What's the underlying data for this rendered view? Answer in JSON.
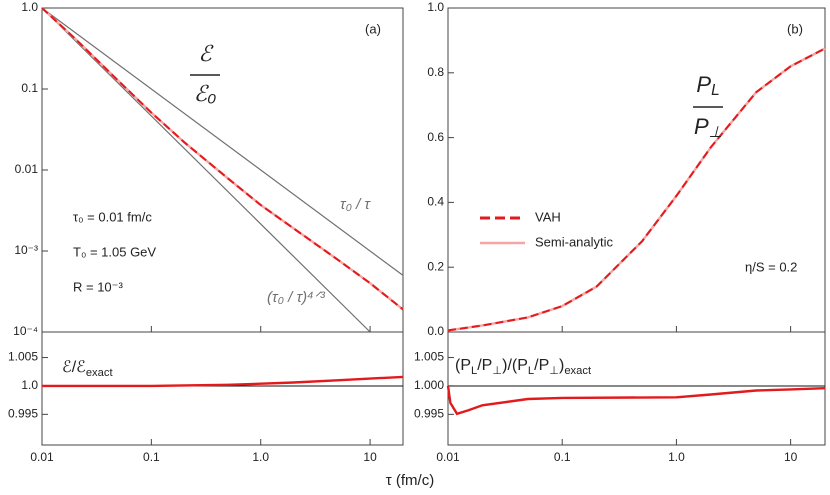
{
  "x_label": "τ (fm/c)",
  "chart_data": [
    {
      "type": "line",
      "panel_label": "(a)",
      "xscale": "log",
      "yscale": "log",
      "xlim": [
        0.01,
        20
      ],
      "xticks": [
        0.01,
        0.1,
        1,
        10
      ],
      "ylim": [
        0.0001,
        1
      ],
      "yticks": [
        {
          "value": 1,
          "label": "1.0"
        },
        0.1,
        0.01,
        {
          "value": 0.001,
          "label": "10⁻³"
        },
        {
          "value": 0.0001,
          "label": "10⁻⁴"
        }
      ],
      "fraction": {
        "numerator": "ℰ",
        "denominator": "ℰ₀"
      },
      "annotations": [
        "τ₀ = 0.01 fm/c",
        "T₀ = 1.05 GeV",
        "R = 10⁻³"
      ],
      "series": [
        {
          "name": "τ₀ / τ",
          "color": "#707070",
          "dashed": false,
          "x": [
            0.01,
            20
          ],
          "values": [
            1,
            0.0005
          ]
        },
        {
          "name": "(τ₀ / τ)⁴ᐟ³",
          "color": "#707070",
          "dashed": false,
          "x": [
            0.01,
            10
          ],
          "values": [
            1,
            0.0001
          ]
        },
        {
          "color": "#f4a6a6",
          "dashed": false,
          "x": [
            0.01,
            0.02,
            0.05,
            0.1,
            0.2,
            0.5,
            1,
            2,
            5,
            10,
            20
          ],
          "values": [
            1,
            0.42,
            0.126,
            0.051,
            0.022,
            0.0079,
            0.0037,
            0.0019,
            0.00079,
            0.0004,
            0.00019
          ]
        },
        {
          "color": "#e31a1c",
          "dashed": true,
          "x": [
            0.01,
            0.02,
            0.05,
            0.1,
            0.2,
            0.5,
            1,
            2,
            5,
            10,
            20
          ],
          "values": [
            1,
            0.42,
            0.126,
            0.051,
            0.022,
            0.0079,
            0.0037,
            0.0019,
            0.00079,
            0.0004,
            0.00019
          ]
        }
      ]
    },
    {
      "type": "line",
      "panel_label": "(b)",
      "xscale": "log",
      "yscale": "linear",
      "xlim": [
        0.01,
        20
      ],
      "xticks": [
        0.01,
        0.1,
        1,
        10
      ],
      "ylim": [
        0,
        1
      ],
      "yticks": [
        {
          "value": 0,
          "label": "0.0"
        },
        0.2,
        0.4,
        0.6,
        0.8,
        {
          "value": 1,
          "label": "1.0"
        }
      ],
      "fraction": {
        "numerator": [
          {
            "text": "P"
          },
          {
            "sub": "L"
          }
        ],
        "denominator": [
          {
            "text": "P"
          },
          {
            "sub": "⊥"
          }
        ]
      },
      "annotations": [
        "η/S = 0.2"
      ],
      "legend": "center-left",
      "series": [
        {
          "name": "Semi-analytic",
          "color": "#f4a6a6",
          "dashed": false,
          "x": [
            0.01,
            0.02,
            0.05,
            0.1,
            0.2,
            0.5,
            1,
            2,
            5,
            10,
            20
          ],
          "values": [
            0.005,
            0.02,
            0.045,
            0.08,
            0.14,
            0.28,
            0.42,
            0.57,
            0.74,
            0.82,
            0.875
          ]
        },
        {
          "name": "VAH",
          "color": "#e31a1c",
          "dashed": true,
          "x": [
            0.01,
            0.02,
            0.05,
            0.1,
            0.2,
            0.5,
            1,
            2,
            5,
            10,
            20
          ],
          "values": [
            0.005,
            0.02,
            0.045,
            0.08,
            0.14,
            0.28,
            0.42,
            0.57,
            0.74,
            0.82,
            0.875
          ]
        }
      ]
    },
    {
      "type": "line",
      "xscale": "log",
      "yscale": "linear",
      "xtick_labels": true,
      "xlim": [
        0.01,
        20
      ],
      "xticks": [
        0.01,
        0.1,
        {
          "value": 1,
          "label": "1.0"
        },
        10
      ],
      "ylim": [
        0.9896,
        1.0095
      ],
      "yticks": [
        0.995,
        {
          "value": 1,
          "label": "1.0"
        },
        1.005
      ],
      "hline": 1,
      "annotations": [
        [
          {
            "text": "ℰ/ℰ"
          },
          {
            "sub": "exact"
          }
        ]
      ],
      "series": [
        {
          "color": "#e31a1c",
          "dashed": false,
          "x": [
            0.01,
            0.02,
            0.05,
            0.1,
            0.2,
            0.5,
            1,
            2,
            5,
            10,
            20
          ],
          "values": [
            1,
            1,
            1,
            1,
            1.0001,
            1.0002,
            1.0004,
            1.0006,
            1.001,
            1.0013,
            1.0016
          ]
        }
      ]
    },
    {
      "type": "line",
      "xscale": "log",
      "yscale": "linear",
      "xtick_labels": true,
      "xlim": [
        0.01,
        20
      ],
      "xticks": [
        0.01,
        0.1,
        {
          "value": 1,
          "label": "1.0"
        },
        10
      ],
      "ylim": [
        0.9896,
        1.0095
      ],
      "yticks": [
        0.995,
        {
          "value": 1,
          "label": "1.000"
        },
        1.005
      ],
      "hline": 1,
      "annotations": [
        [
          {
            "text": "(P"
          },
          {
            "sub": "L"
          },
          {
            "text": "/P"
          },
          {
            "sub": "⊥"
          },
          {
            "text": ")/(P"
          },
          {
            "sub": "L"
          },
          {
            "text": "/P"
          },
          {
            "sub": "⊥"
          },
          {
            "text": ")"
          },
          {
            "sub": "exact"
          }
        ]
      ],
      "series": [
        {
          "color": "#e31a1c",
          "dashed": false,
          "x": [
            0.01,
            0.0105,
            0.012,
            0.015,
            0.02,
            0.05,
            0.1,
            1,
            2,
            5,
            10,
            20
          ],
          "values": [
            1,
            0.997,
            0.9951,
            0.9957,
            0.9966,
            0.9977,
            0.9979,
            0.998,
            0.9985,
            0.9992,
            0.9994,
            0.9996
          ]
        }
      ]
    }
  ]
}
